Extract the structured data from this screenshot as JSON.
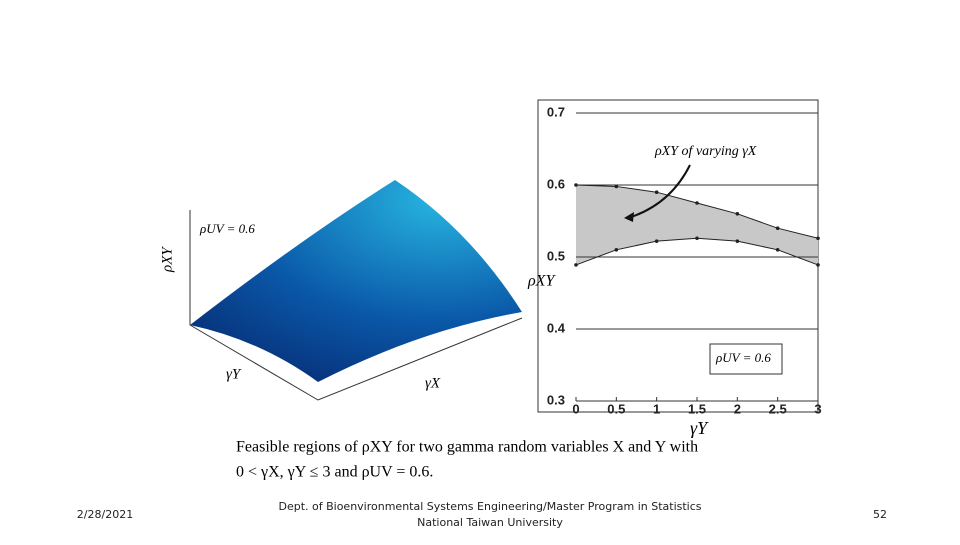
{
  "surface": {
    "rho_label": "ρXY",
    "rho_uv": "ρUV = 0.6",
    "gamma_y": "γY",
    "gamma_x": "γX"
  },
  "chart_data": {
    "type": "line",
    "annotation": "ρXY of varying γX",
    "legend": "ρUV = 0.6",
    "xlabel": "γY",
    "ylabel": "ρXY",
    "x": [
      0,
      0.5,
      1,
      1.5,
      2,
      2.5,
      3
    ],
    "series": [
      {
        "name": "upper",
        "color": "#222",
        "values": [
          0.6,
          0.598,
          0.59,
          0.575,
          0.56,
          0.54,
          0.526
        ]
      },
      {
        "name": "lower",
        "color": "#222",
        "values": [
          0.489,
          0.51,
          0.522,
          0.526,
          0.522,
          0.51,
          0.489
        ]
      }
    ],
    "fill": "#c8c8c8",
    "xlim": [
      0,
      3
    ],
    "ylim": [
      0.3,
      0.7
    ],
    "xticks": [
      0,
      0.5,
      1,
      1.5,
      2,
      2.5,
      3
    ],
    "yticks": [
      0.3,
      0.4,
      0.5,
      0.6,
      0.7
    ],
    "grid": true
  },
  "caption": [
    "Feasible regions of ρXY for two gamma random variables X and Y with",
    "0 < γX, γY ≤ 3 and ρUV = 0.6."
  ],
  "footer": {
    "date": "2/28/2021",
    "line1": "Dept. of Bioenvironmental Systems Engineering/Master Program in Statistics",
    "line2": "National Taiwan University",
    "page": "52"
  }
}
